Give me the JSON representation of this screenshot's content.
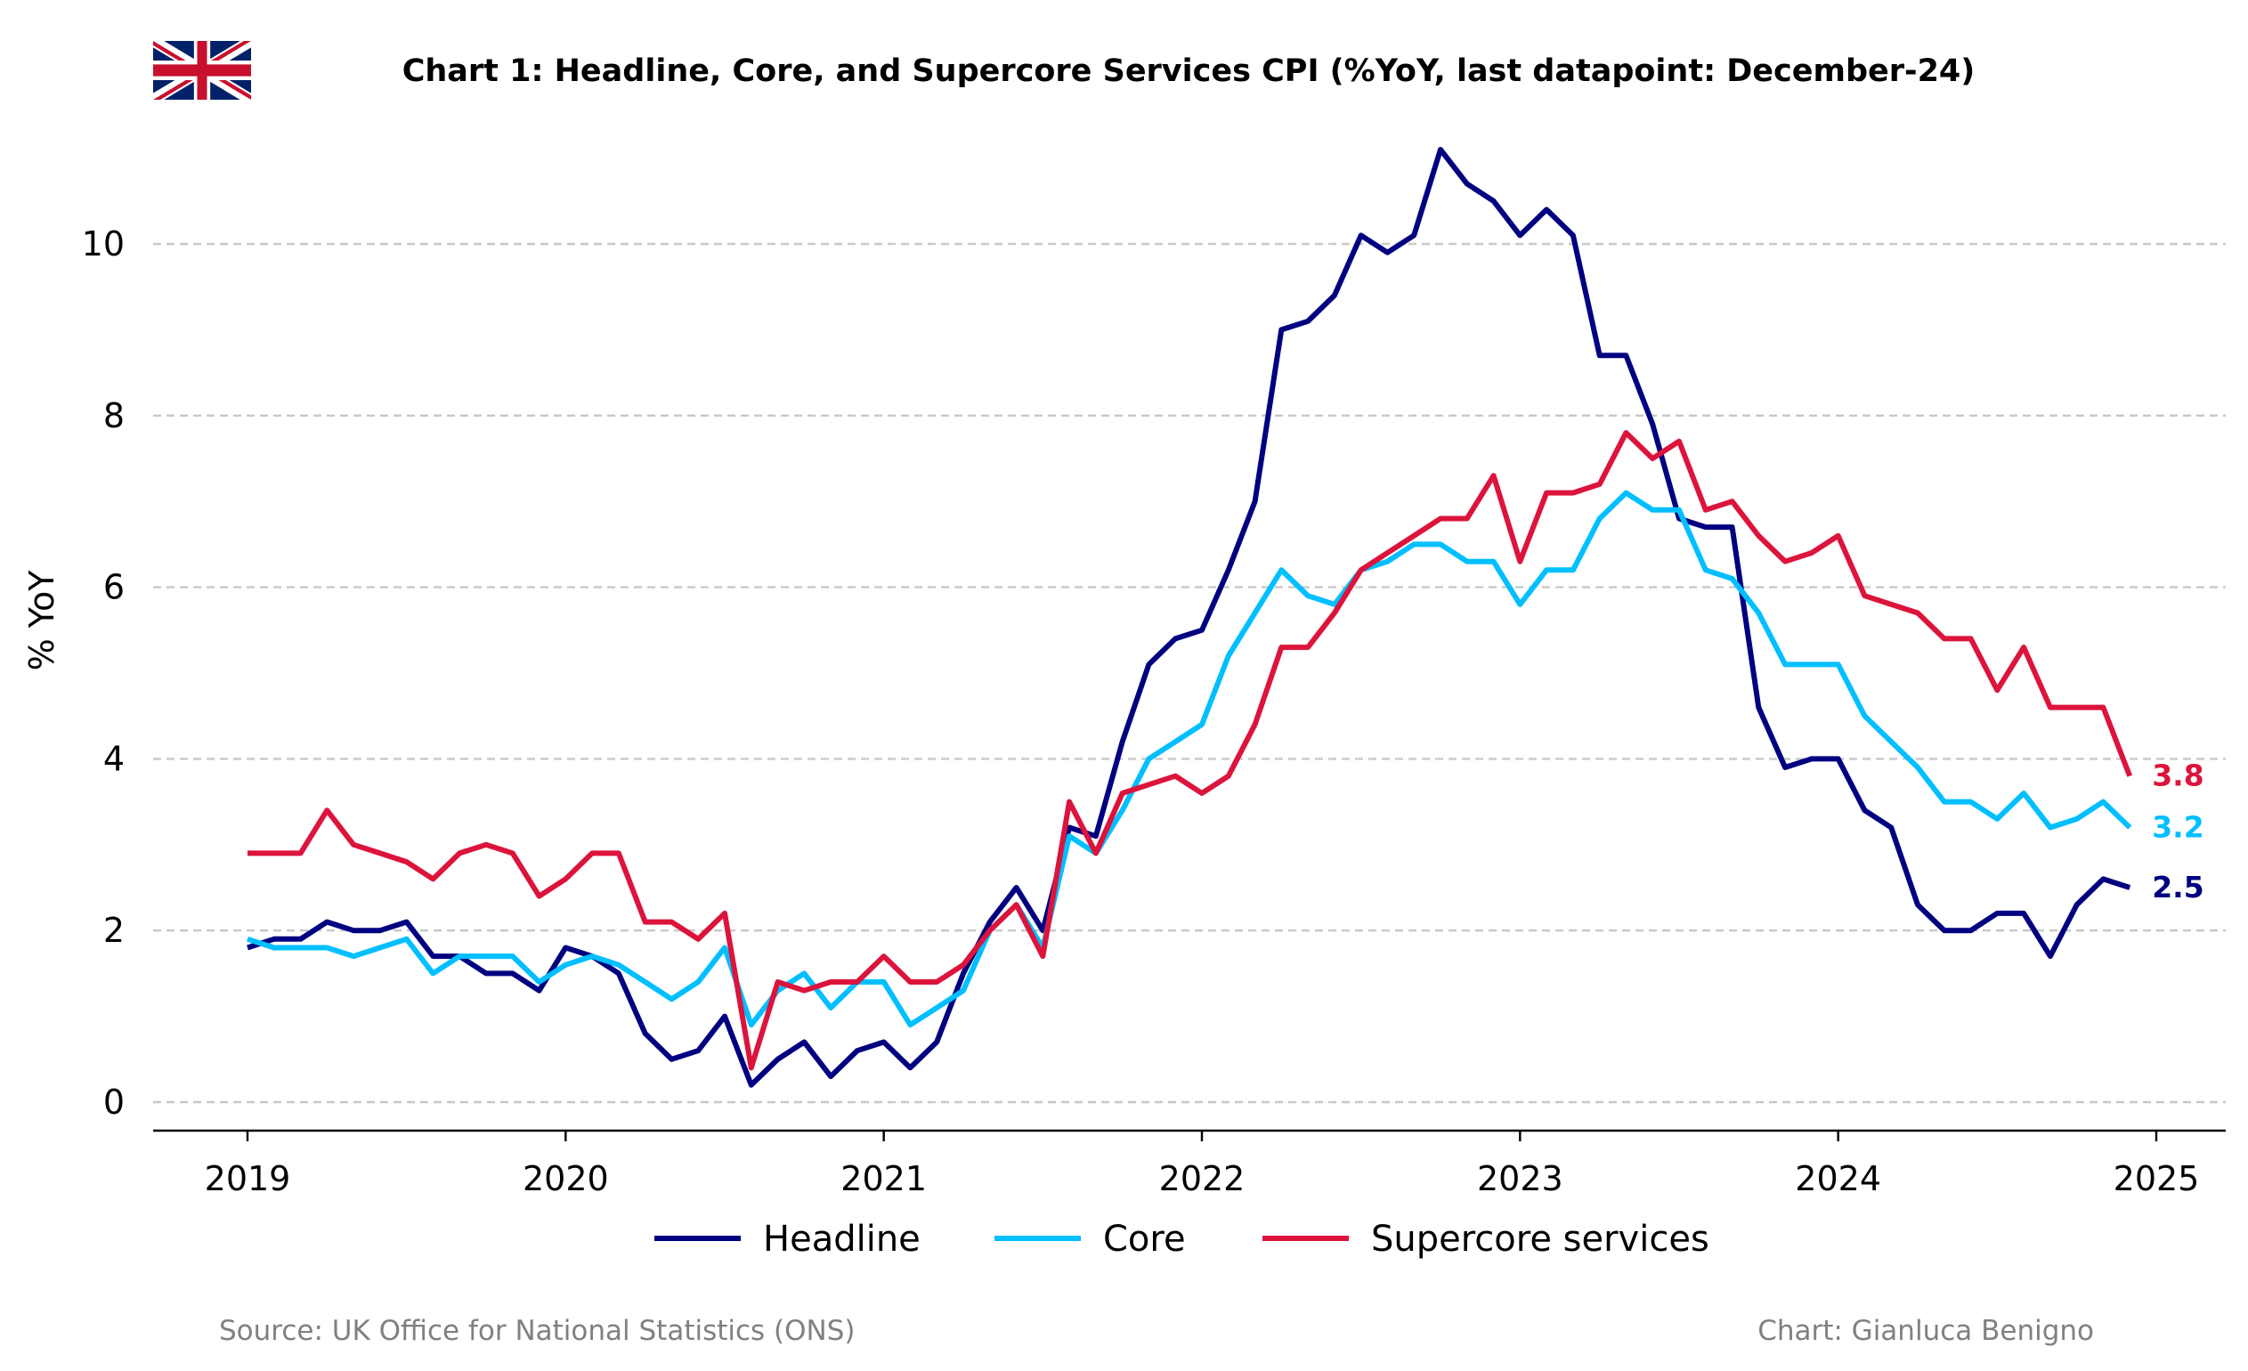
{
  "chart_data": {
    "type": "line",
    "title": "Chart 1: Headline, Core, and Supercore Services CPI (%YoY, last datapoint: December-24)",
    "ylabel": "% YoY",
    "xlabel": "",
    "xlim": [
      2019,
      2025
    ],
    "ylim": [
      -0.35,
      11.3
    ],
    "x_ticks": [
      "2019",
      "2020",
      "2021",
      "2022",
      "2023",
      "2024",
      "2025"
    ],
    "y_ticks": [
      "0",
      "2",
      "4",
      "6",
      "8",
      "10"
    ],
    "grid": "horizontal dashed",
    "legend_position": "bottom-center",
    "x_start": "2019-01",
    "x_end": "2024-12",
    "x_frequency": "monthly",
    "series": [
      {
        "name": "Headline",
        "color": "#000080",
        "end_label": "2.5",
        "values": [
          1.8,
          1.9,
          1.9,
          2.1,
          2.0,
          2.0,
          2.1,
          1.7,
          1.7,
          1.5,
          1.5,
          1.3,
          1.8,
          1.7,
          1.5,
          0.8,
          0.5,
          0.6,
          1.0,
          0.2,
          0.5,
          0.7,
          0.3,
          0.6,
          0.7,
          0.4,
          0.7,
          1.5,
          2.1,
          2.5,
          2.0,
          3.2,
          3.1,
          4.2,
          5.1,
          5.4,
          5.5,
          6.2,
          7.0,
          9.0,
          9.1,
          9.4,
          10.1,
          9.9,
          10.1,
          11.1,
          10.7,
          10.5,
          10.1,
          10.4,
          10.1,
          8.7,
          8.7,
          7.9,
          6.8,
          6.7,
          6.7,
          4.6,
          3.9,
          4.0,
          4.0,
          3.4,
          3.2,
          2.3,
          2.0,
          2.0,
          2.2,
          2.2,
          1.7,
          2.3,
          2.6,
          2.5
        ]
      },
      {
        "name": "Core",
        "color": "#00bfff",
        "end_label": "3.2",
        "values": [
          1.9,
          1.8,
          1.8,
          1.8,
          1.7,
          1.8,
          1.9,
          1.5,
          1.7,
          1.7,
          1.7,
          1.4,
          1.6,
          1.7,
          1.6,
          1.4,
          1.2,
          1.4,
          1.8,
          0.9,
          1.3,
          1.5,
          1.1,
          1.4,
          1.4,
          0.9,
          1.1,
          1.3,
          2.0,
          2.3,
          1.8,
          3.1,
          2.9,
          3.4,
          4.0,
          4.2,
          4.4,
          5.2,
          5.7,
          6.2,
          5.9,
          5.8,
          6.2,
          6.3,
          6.5,
          6.5,
          6.3,
          6.3,
          5.8,
          6.2,
          6.2,
          6.8,
          7.1,
          6.9,
          6.9,
          6.2,
          6.1,
          5.7,
          5.1,
          5.1,
          5.1,
          4.5,
          4.2,
          3.9,
          3.5,
          3.5,
          3.3,
          3.6,
          3.2,
          3.3,
          3.5,
          3.2
        ]
      },
      {
        "name": "Supercore services",
        "color": "#dc143c",
        "end_label": "3.8",
        "values": [
          2.9,
          2.9,
          2.9,
          3.4,
          3.0,
          2.9,
          2.8,
          2.6,
          2.9,
          3.0,
          2.9,
          2.4,
          2.6,
          2.9,
          2.9,
          2.1,
          2.1,
          1.9,
          2.2,
          0.4,
          1.4,
          1.3,
          1.4,
          1.4,
          1.7,
          1.4,
          1.4,
          1.6,
          2.0,
          2.3,
          1.7,
          3.5,
          2.9,
          3.6,
          3.7,
          3.8,
          3.6,
          3.8,
          4.4,
          5.3,
          5.3,
          5.7,
          6.2,
          6.4,
          6.6,
          6.8,
          6.8,
          7.3,
          6.3,
          7.1,
          7.1,
          7.2,
          7.8,
          7.5,
          7.7,
          6.9,
          7.0,
          6.6,
          6.3,
          6.4,
          6.6,
          5.9,
          5.8,
          5.7,
          5.4,
          5.4,
          4.8,
          5.3,
          4.6,
          4.6,
          4.6,
          3.8
        ]
      }
    ]
  },
  "footer": {
    "source": "Source: UK Office for National Statistics (ONS)",
    "credit": "Chart: Gianluca Benigno"
  },
  "logo": {
    "icon": "uk-flag-icon",
    "colors": {
      "blue": "#012169",
      "red": "#c8102e",
      "white": "#ffffff"
    }
  }
}
